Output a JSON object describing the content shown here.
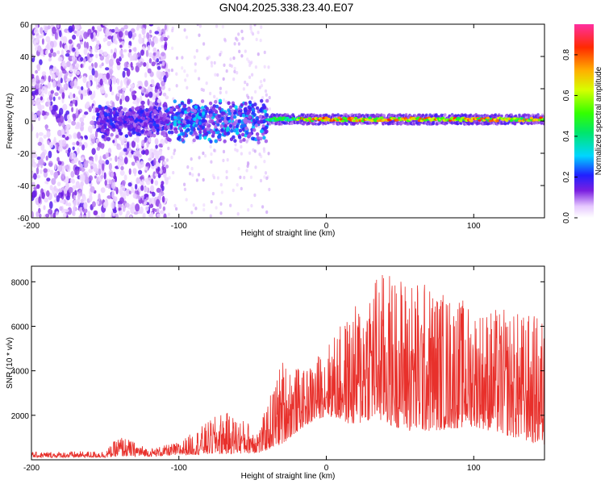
{
  "chart_data": [
    {
      "type": "heatmap",
      "title": "GN04.2025.338.23.40.E07",
      "xlabel": "Height of straight line (km)",
      "ylabel": "Frequency (Hz)",
      "xlim": [
        -200,
        148
      ],
      "ylim": [
        -60,
        60
      ],
      "xticks": [
        -200,
        -100,
        0,
        100
      ],
      "xtick_labels": [
        "-200",
        "-100",
        "0",
        "100"
      ],
      "yticks": [
        -60,
        -40,
        -20,
        0,
        20,
        40,
        60
      ],
      "ytick_labels": [
        "-60",
        "-40",
        "-20",
        "0",
        "20",
        "40",
        "60"
      ],
      "colorbar": {
        "label": "Normalized spectral amplitude",
        "range": [
          0,
          0.95
        ],
        "ticks": [
          0.0,
          0.2,
          0.4,
          0.6,
          0.8
        ],
        "tick_labels": [
          "0.0",
          "0.2",
          "0.4",
          "0.6",
          "0.8"
        ]
      },
      "description_bands": [
        {
          "x_range": [
            -200,
            -108
          ],
          "freq_spread": 60,
          "amplitude": 0.15
        },
        {
          "x_range": [
            -108,
            -40
          ],
          "freq_spread": 15,
          "amplitude": 0.3
        },
        {
          "x_range": [
            -40,
            148
          ],
          "freq_center": 1,
          "freq_spread": 3,
          "amplitude": 0.85
        }
      ]
    },
    {
      "type": "line",
      "xlabel": "Height of straight line (km)",
      "ylabel": "SNR (10 * v/v)",
      "xlim": [
        -200,
        148
      ],
      "ylim": [
        0,
        8700
      ],
      "xticks": [
        -200,
        -100,
        0,
        100
      ],
      "xtick_labels": [
        "-200",
        "-100",
        "0",
        "100"
      ],
      "yticks": [
        2000,
        4000,
        6000,
        8000
      ],
      "ytick_labels": [
        "2000",
        "4000",
        "6000",
        "8000"
      ],
      "series": [
        {
          "name": "SNR",
          "color": "#e8302b",
          "envelope": [
            {
              "x": -200,
              "low": 100,
              "high": 350
            },
            {
              "x": -150,
              "low": 100,
              "high": 400
            },
            {
              "x": -140,
              "low": 150,
              "high": 1100
            },
            {
              "x": -120,
              "low": 150,
              "high": 500
            },
            {
              "x": -100,
              "low": 200,
              "high": 800
            },
            {
              "x": -70,
              "low": 250,
              "high": 2200
            },
            {
              "x": -45,
              "low": 300,
              "high": 1500
            },
            {
              "x": -30,
              "low": 700,
              "high": 4600
            },
            {
              "x": -15,
              "low": 1500,
              "high": 4000
            },
            {
              "x": 0,
              "low": 2000,
              "high": 5200
            },
            {
              "x": 20,
              "low": 1500,
              "high": 7000
            },
            {
              "x": 30,
              "low": 1800,
              "high": 8600
            },
            {
              "x": 60,
              "low": 1200,
              "high": 8300
            },
            {
              "x": 100,
              "low": 1500,
              "high": 7000
            },
            {
              "x": 148,
              "low": 600,
              "high": 6500
            }
          ]
        }
      ]
    }
  ]
}
